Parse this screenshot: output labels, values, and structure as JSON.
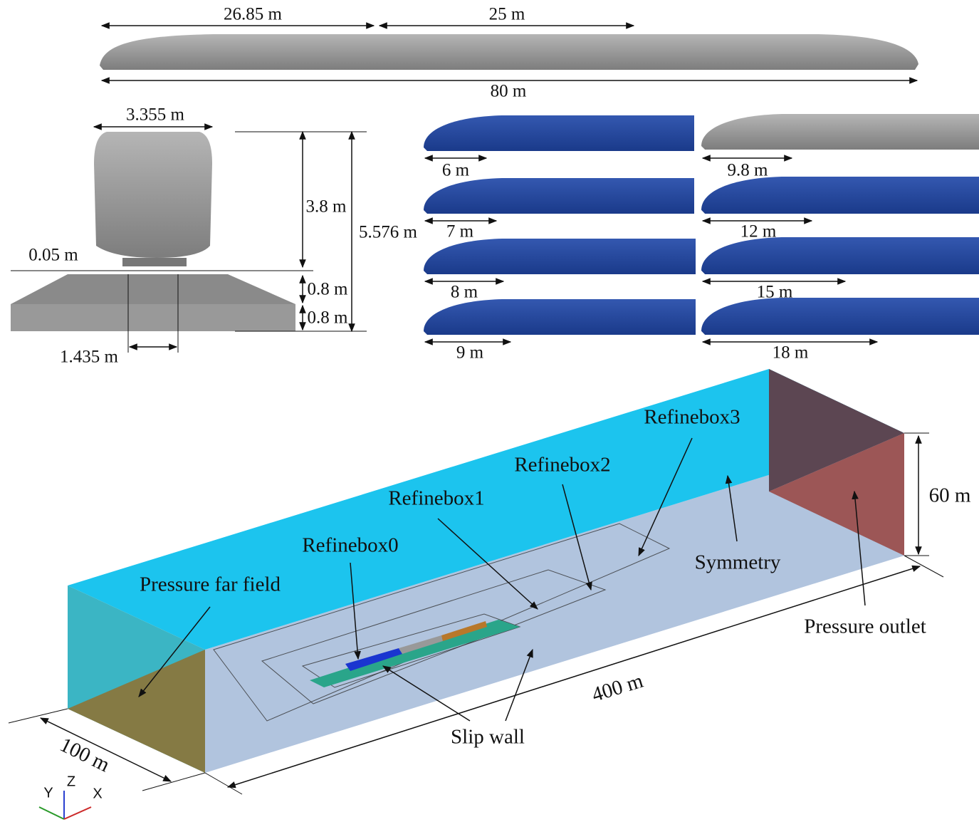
{
  "top_train": {
    "dim_front": "26.85 m",
    "dim_middle": "25 m",
    "dim_total": "80 m"
  },
  "cross_section": {
    "width": "3.355 m",
    "height": "3.8 m",
    "total_height": "5.576 m",
    "clearance": "0.05 m",
    "ballast": "0.8 m",
    "slab": "0.8 m",
    "gauge": "1.435 m"
  },
  "nose_variants": [
    "6 m",
    "7 m",
    "8 m",
    "9 m",
    "9.8 m",
    "12 m",
    "15 m",
    "18 m"
  ],
  "domain": {
    "refinebox0": "Refinebox0",
    "refinebox1": "Refinebox1",
    "refinebox2": "Refinebox2",
    "refinebox3": "Refinebox3",
    "far_field": "Pressure far field",
    "symmetry": "Symmetry",
    "outlet": "Pressure outlet",
    "slip_wall": "Slip wall",
    "length": "400 m",
    "width": "100 m",
    "height": "60 m"
  },
  "axes": {
    "y": "Y",
    "z": "Z",
    "x": "X"
  }
}
